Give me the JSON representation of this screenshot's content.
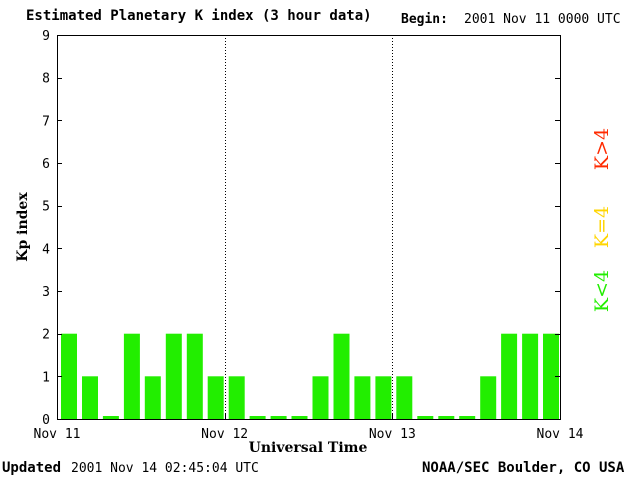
{
  "header": {
    "title": "Estimated Planetary K index (3 hour data)",
    "begin_label": "Begin:",
    "begin_value": "2001 Nov 11 0000 UTC"
  },
  "footer": {
    "updated_label": "Updated",
    "updated_value": "2001 Nov 14 02:45:04 UTC",
    "credit": "NOAA/SEC Boulder, CO USA"
  },
  "legend": [
    {
      "label": "K>4",
      "color": "#ff2a00"
    },
    {
      "label": "K=4",
      "color": "#ffd500"
    },
    {
      "label": "K<4",
      "color": "#22ee00"
    }
  ],
  "chart_data": {
    "type": "bar",
    "title": "Estimated Planetary K index (3 hour data)",
    "xlabel": "Universal Time",
    "ylabel": "Kp index",
    "ylim": [
      0,
      9
    ],
    "yticks": [
      0,
      1,
      2,
      3,
      4,
      5,
      6,
      7,
      8,
      9
    ],
    "x_tick_labels": [
      "Nov 11",
      "Nov 12",
      "Nov 13",
      "Nov 14"
    ],
    "day_divider_lines": "dotted",
    "bar_color": "#22ee00",
    "values": [
      2,
      1,
      0,
      2,
      1,
      2,
      2,
      1,
      1,
      0,
      0,
      0,
      1,
      2,
      1,
      1,
      1,
      0,
      0,
      0,
      1,
      2,
      2,
      2
    ]
  }
}
